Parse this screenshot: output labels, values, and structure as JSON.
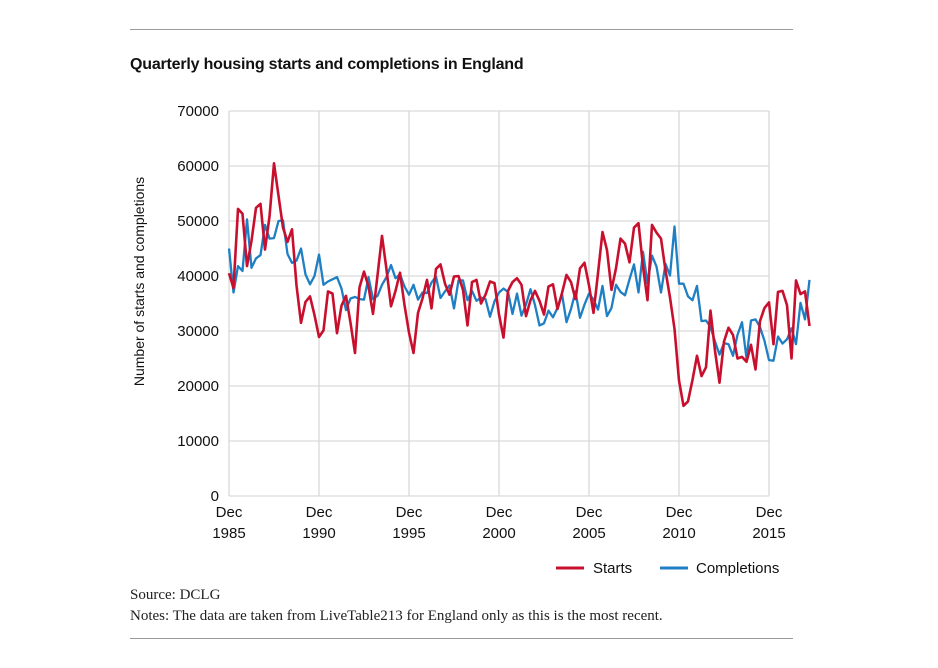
{
  "title": "Quarterly housing starts and completions in England",
  "source": "Source: DCLG",
  "notes": "Notes: The data are taken from LiveTable213 for England only as this is the most recent.",
  "chart_data": {
    "type": "line",
    "title": "Quarterly housing starts and completions in England",
    "ylabel": "Number of starts and completions",
    "xlabel": "",
    "xlim": [
      1985.92,
      2015.92
    ],
    "ylim": [
      0,
      70000
    ],
    "yticks": [
      0,
      10000,
      20000,
      30000,
      40000,
      50000,
      60000,
      70000
    ],
    "xticks": [
      {
        "value": 1985.92,
        "line1": "Dec",
        "line2": "1985"
      },
      {
        "value": 1990.92,
        "line1": "Dec",
        "line2": "1990"
      },
      {
        "value": 1995.92,
        "line1": "Dec",
        "line2": "1995"
      },
      {
        "value": 2000.92,
        "line1": "Dec",
        "line2": "2000"
      },
      {
        "value": 2005.92,
        "line1": "Dec",
        "line2": "2005"
      },
      {
        "value": 2010.92,
        "line1": "Dec",
        "line2": "2010"
      },
      {
        "value": 2015.92,
        "line1": "Dec",
        "line2": "2015"
      }
    ],
    "grid": true,
    "legend_position": "bottom-right",
    "x_start": 1985.92,
    "x_step": 0.25,
    "series": [
      {
        "name": "Starts",
        "color": "#c8102e",
        "values": [
          40500,
          37800,
          52200,
          51300,
          41800,
          46400,
          52400,
          53100,
          44800,
          50800,
          60500,
          54600,
          48800,
          46200,
          48500,
          38300,
          31500,
          35300,
          36300,
          32900,
          28900,
          30100,
          37200,
          36800,
          29600,
          34600,
          36400,
          31500,
          26000,
          37900,
          40800,
          38100,
          33100,
          40100,
          47300,
          41200,
          34500,
          37300,
          40600,
          34700,
          29700,
          26000,
          33300,
          35900,
          39300,
          34100,
          41300,
          42100,
          38600,
          36600,
          39900,
          40000,
          37500,
          31000,
          38900,
          39300,
          35000,
          36600,
          39000,
          38700,
          33000,
          28800,
          37300,
          38900,
          39600,
          38400,
          32700,
          35600,
          37300,
          35500,
          33000,
          38100,
          38500,
          34000,
          36900,
          40200,
          38900,
          35800,
          41400,
          42400,
          38300,
          33300,
          40500,
          48000,
          44700,
          37500,
          41400,
          46800,
          45900,
          42500,
          48800,
          49600,
          41700,
          35600,
          49300,
          47900,
          46800,
          41000,
          36100,
          30400,
          21000,
          16400,
          17200,
          21100,
          25500,
          21800,
          23400,
          33700,
          26400,
          20600,
          28100,
          30600,
          29300,
          25000,
          25300,
          24400,
          27500,
          23000,
          31800,
          34200,
          35200,
          27600,
          37100,
          37300,
          34700,
          25000,
          39200,
          36700,
          37200,
          30900
        ]
      },
      {
        "name": "Completions",
        "color": "#1f7fc4",
        "values": [
          45000,
          37000,
          41800,
          40900,
          50300,
          41500,
          43200,
          43800,
          49300,
          46800,
          46900,
          50000,
          50100,
          44000,
          42400,
          42800,
          45000,
          40300,
          38500,
          40000,
          43900,
          38400,
          39000,
          39400,
          39800,
          37700,
          33800,
          35900,
          36200,
          35800,
          35700,
          39800,
          35800,
          36400,
          38400,
          39800,
          42000,
          39600,
          40300,
          38100,
          36600,
          38400,
          35700,
          37000,
          36900,
          38800,
          39900,
          36000,
          37200,
          38300,
          34100,
          39200,
          39200,
          35600,
          37300,
          35500,
          36100,
          35800,
          32600,
          35400,
          37000,
          37700,
          37100,
          33100,
          36800,
          32800,
          34800,
          37600,
          34700,
          31000,
          31400,
          33700,
          32500,
          34200,
          36700,
          31600,
          34000,
          37200,
          32400,
          34800,
          36800,
          35700,
          33900,
          38200,
          32700,
          34200,
          38400,
          37100,
          36500,
          39400,
          42100,
          37000,
          44400,
          38700,
          43700,
          41700,
          37000,
          42200,
          40100,
          49000,
          38600,
          38600,
          36300,
          35600,
          38200,
          31800,
          31900,
          30700,
          28100,
          25700,
          27800,
          27600,
          25500,
          29300,
          31600,
          25000,
          31900,
          32100,
          30700,
          28200,
          24700,
          24600,
          29000,
          27700,
          28500,
          30500,
          27600,
          35100,
          32100,
          39300
        ]
      }
    ]
  }
}
